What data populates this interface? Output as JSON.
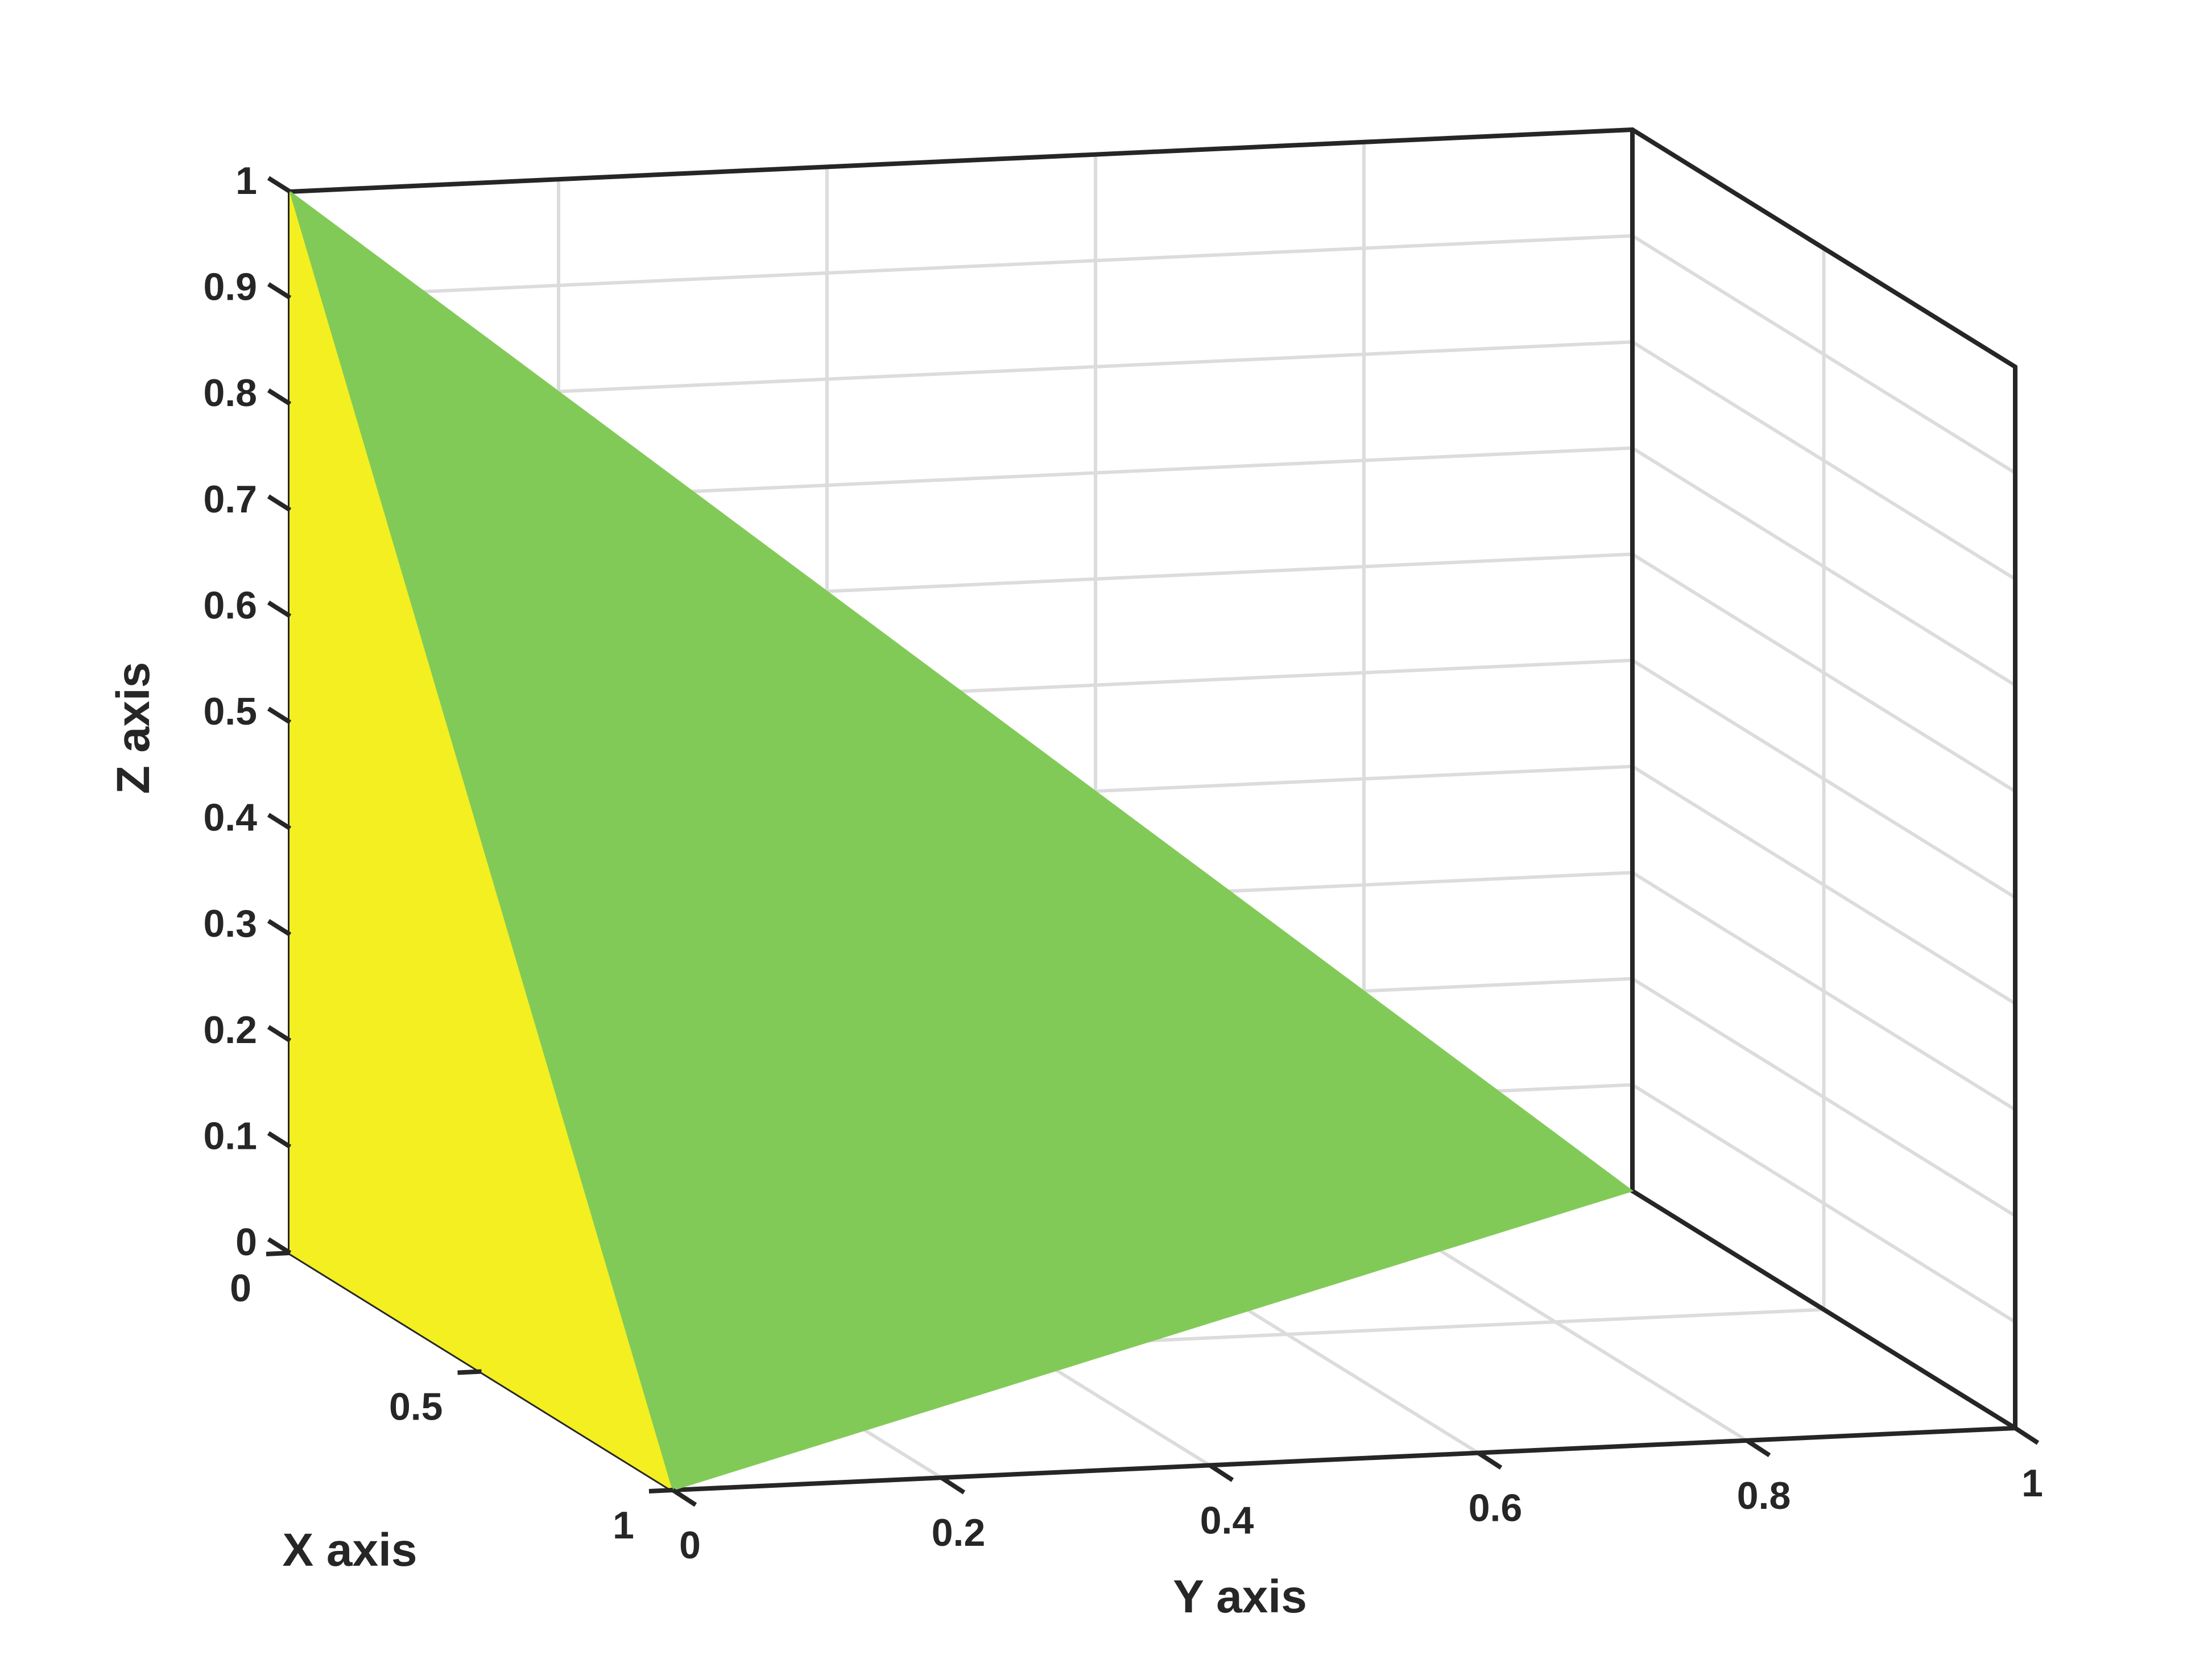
{
  "chart_data": {
    "type": "3d-surface",
    "title": "",
    "xlabel": "X axis",
    "ylabel": "Y axis",
    "zlabel": "Z axis",
    "xlim": [
      0,
      1
    ],
    "ylim": [
      0,
      1
    ],
    "zlim": [
      0,
      1
    ],
    "grid": true,
    "xticks": [
      0,
      0.5,
      1
    ],
    "xtick_labels": [
      "0",
      "0.5",
      "1"
    ],
    "yticks": [
      0,
      0.2,
      0.4,
      0.6,
      0.8,
      1
    ],
    "ytick_labels": [
      "0",
      "0.2",
      "0.4",
      "0.6",
      "0.8",
      "1"
    ],
    "zticks": [
      0,
      0.1,
      0.2,
      0.3,
      0.4,
      0.5,
      0.6,
      0.7,
      0.8,
      0.9,
      1
    ],
    "ztick_labels": [
      "0",
      "0.1",
      "0.2",
      "0.3",
      "0.4",
      "0.5",
      "0.6",
      "0.7",
      "0.8",
      "0.9",
      "1"
    ],
    "patches": [
      {
        "color": "#f3ef21",
        "vertices": [
          [
            0,
            0,
            0
          ],
          [
            1,
            0,
            0
          ],
          [
            0,
            0,
            1
          ]
        ]
      },
      {
        "color": "#82ca58",
        "vertices": [
          [
            1,
            0,
            0
          ],
          [
            0,
            1,
            0
          ],
          [
            0,
            0,
            1
          ]
        ]
      }
    ]
  }
}
